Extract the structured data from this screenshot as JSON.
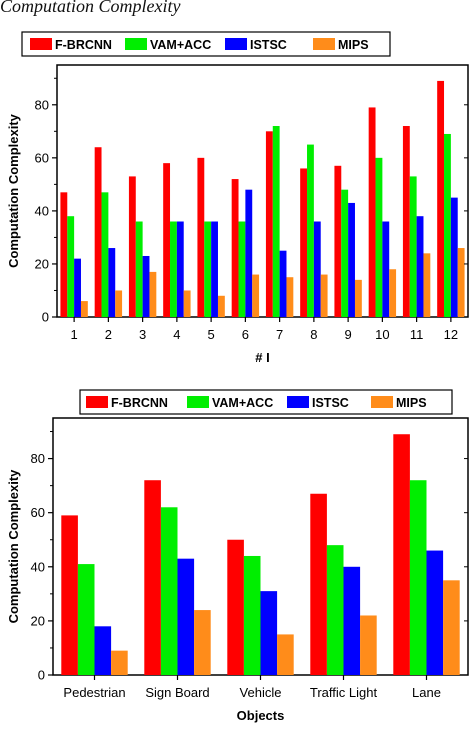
{
  "page_title": "Computation Complexity",
  "colors": {
    "F-BRCNN": "#ff0000",
    "VAM+ACC": "#00ee00",
    "ISTSC": "#0000ff",
    "MIPS": "#ff8c1a"
  },
  "chart_data": [
    {
      "type": "bar",
      "xlabel": "# I",
      "ylabel": "Computation Complexity",
      "ylim": [
        0,
        95
      ],
      "yticks": [
        0,
        20,
        40,
        60,
        80
      ],
      "legend": "top-left",
      "categories": [
        "1",
        "2",
        "3",
        "4",
        "5",
        "6",
        "7",
        "8",
        "9",
        "10",
        "11",
        "12"
      ],
      "series": [
        {
          "name": "F-BRCNN",
          "values": [
            47,
            64,
            53,
            58,
            60,
            52,
            70,
            56,
            57,
            79,
            72,
            89
          ]
        },
        {
          "name": "VAM+ACC",
          "values": [
            38,
            47,
            36,
            36,
            36,
            36,
            72,
            65,
            48,
            60,
            53,
            69
          ]
        },
        {
          "name": "ISTSC",
          "values": [
            22,
            26,
            23,
            36,
            36,
            48,
            25,
            36,
            43,
            36,
            38,
            45
          ]
        },
        {
          "name": "MIPS",
          "values": [
            6,
            10,
            17,
            10,
            8,
            16,
            15,
            16,
            14,
            18,
            24,
            26
          ]
        }
      ]
    },
    {
      "type": "bar",
      "xlabel": "Objects",
      "ylabel": "Computation Complexity",
      "ylim": [
        0,
        95
      ],
      "yticks": [
        0,
        20,
        40,
        60,
        80
      ],
      "legend": "top",
      "categories": [
        "Pedestrian",
        "Sign Board",
        "Vehicle",
        "Traffic Light",
        "Lane"
      ],
      "series": [
        {
          "name": "F-BRCNN",
          "values": [
            59,
            72,
            50,
            67,
            89
          ]
        },
        {
          "name": "VAM+ACC",
          "values": [
            41,
            62,
            44,
            48,
            72
          ]
        },
        {
          "name": "ISTSC",
          "values": [
            18,
            43,
            31,
            40,
            46
          ]
        },
        {
          "name": "MIPS",
          "values": [
            9,
            24,
            15,
            22,
            35
          ]
        }
      ]
    }
  ]
}
